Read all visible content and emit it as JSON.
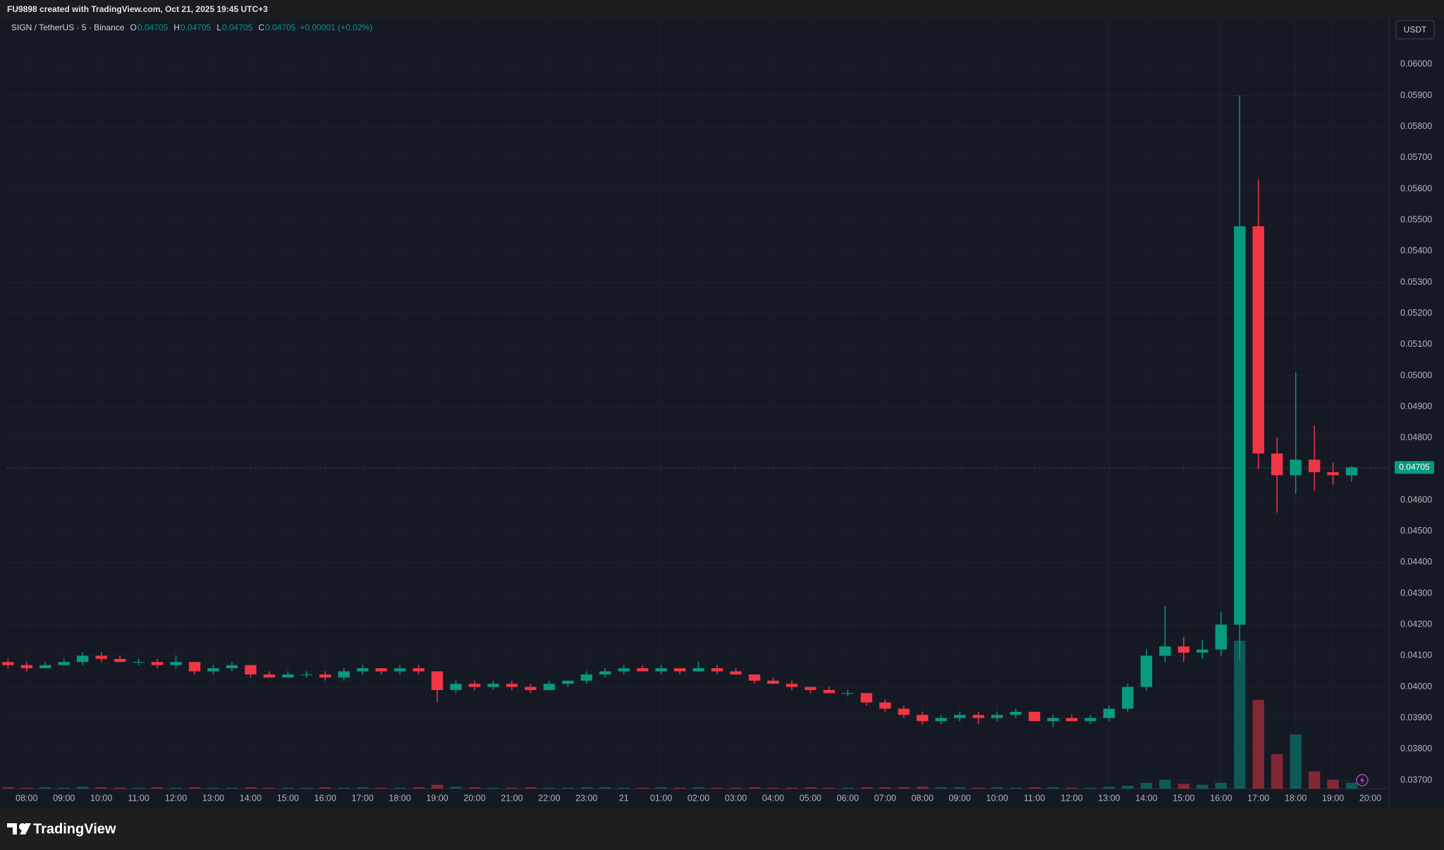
{
  "header": {
    "title": "FU9898 created with TradingView.com, Oct 21, 2025 19:45 UTC+3"
  },
  "footer": {
    "logo": "TradingView"
  },
  "chart_data": {
    "type": "candlestick",
    "symbol": "SIGN / TetherUS · 5 · Binance",
    "legend": [
      {
        "label": "O",
        "value": 0.04705
      },
      {
        "label": "H",
        "value": 0.04705
      },
      {
        "label": "L",
        "value": 0.04705
      },
      {
        "label": "C",
        "value": 0.04705
      }
    ],
    "change": "+0.00001 (+0.02%)",
    "currency": "USDT",
    "last_price": 0.04705,
    "colors": {
      "up": "#089981",
      "down": "#f23645"
    },
    "open": [
      0.0408,
      0.0407,
      0.0406,
      0.0407,
      0.0408,
      0.041,
      0.0409,
      0.0408,
      0.0408,
      0.0407,
      0.0408,
      0.0405,
      0.0406,
      0.0407,
      0.0404,
      0.0403,
      0.0404,
      0.0404,
      0.0403,
      0.0405,
      0.0406,
      0.0405,
      0.0406,
      0.0405,
      0.0399,
      0.0401,
      0.04,
      0.0401,
      0.04,
      0.0399,
      0.0401,
      0.0402,
      0.0404,
      0.0405,
      0.0406,
      0.0405,
      0.0406,
      0.0405,
      0.0406,
      0.0405,
      0.0404,
      0.0402,
      0.0401,
      0.04,
      0.0399,
      0.0398,
      0.0398,
      0.0395,
      0.0393,
      0.0391,
      0.0389,
      0.039,
      0.0391,
      0.039,
      0.0391,
      0.0392,
      0.0389,
      0.039,
      0.0389,
      0.039,
      0.0393,
      0.04,
      0.041,
      0.0413,
      0.0411,
      0.0412,
      0.042,
      0.0548,
      0.0475,
      0.0468,
      0.0473,
      0.0469,
      0.0468
    ],
    "high": [
      0.0409,
      0.0408,
      0.0408,
      0.0409,
      0.0411,
      0.0411,
      0.041,
      0.0409,
      0.0409,
      0.041,
      0.0408,
      0.0407,
      0.0408,
      0.0407,
      0.0405,
      0.0405,
      0.0405,
      0.0405,
      0.0406,
      0.0407,
      0.0406,
      0.0407,
      0.0407,
      0.0405,
      0.0402,
      0.0402,
      0.0402,
      0.0402,
      0.0401,
      0.0402,
      0.0402,
      0.0405,
      0.0406,
      0.0407,
      0.0407,
      0.0407,
      0.0406,
      0.0408,
      0.0407,
      0.0406,
      0.0404,
      0.0403,
      0.0402,
      0.04,
      0.04,
      0.0399,
      0.0398,
      0.0396,
      0.0394,
      0.0392,
      0.0391,
      0.0392,
      0.0392,
      0.0392,
      0.0393,
      0.0392,
      0.0391,
      0.0391,
      0.0391,
      0.0394,
      0.0401,
      0.0412,
      0.0426,
      0.0416,
      0.0415,
      0.0424,
      0.059,
      0.0563,
      0.048,
      0.0501,
      0.0484,
      0.0472,
      0.0471
    ],
    "low": [
      0.0406,
      0.0405,
      0.0406,
      0.0407,
      0.0407,
      0.0408,
      0.0408,
      0.0407,
      0.0406,
      0.0406,
      0.0404,
      0.0404,
      0.0405,
      0.0403,
      0.0403,
      0.0403,
      0.0403,
      0.0402,
      0.0402,
      0.0404,
      0.0404,
      0.0404,
      0.0404,
      0.0395,
      0.0398,
      0.0399,
      0.0399,
      0.0399,
      0.0398,
      0.0399,
      0.04,
      0.0401,
      0.0403,
      0.0404,
      0.0405,
      0.0404,
      0.0404,
      0.0405,
      0.0404,
      0.0404,
      0.0401,
      0.0401,
      0.0399,
      0.0398,
      0.0398,
      0.0397,
      0.0394,
      0.0392,
      0.039,
      0.0388,
      0.0388,
      0.0389,
      0.0388,
      0.0389,
      0.039,
      0.0389,
      0.0387,
      0.0389,
      0.0388,
      0.0389,
      0.0392,
      0.0399,
      0.0408,
      0.0408,
      0.0409,
      0.041,
      0.0409,
      0.047,
      0.0456,
      0.0462,
      0.0463,
      0.0465,
      0.0466
    ],
    "close": [
      0.0407,
      0.0406,
      0.0407,
      0.0408,
      0.041,
      0.0409,
      0.0408,
      0.0408,
      0.0407,
      0.0408,
      0.0405,
      0.0406,
      0.0407,
      0.0404,
      0.0403,
      0.0404,
      0.0404,
      0.0403,
      0.0405,
      0.0406,
      0.0405,
      0.0406,
      0.0405,
      0.0399,
      0.0401,
      0.04,
      0.0401,
      0.04,
      0.0399,
      0.0401,
      0.0402,
      0.0404,
      0.0405,
      0.0406,
      0.0405,
      0.0406,
      0.0405,
      0.0406,
      0.0405,
      0.0404,
      0.0402,
      0.0401,
      0.04,
      0.0399,
      0.0398,
      0.0398,
      0.0395,
      0.0393,
      0.0391,
      0.0389,
      0.039,
      0.0391,
      0.039,
      0.0391,
      0.0392,
      0.0389,
      0.039,
      0.0389,
      0.039,
      0.0393,
      0.04,
      0.041,
      0.0413,
      0.0411,
      0.0412,
      0.042,
      0.0548,
      0.0475,
      0.0468,
      0.0473,
      0.0469,
      0.0468,
      0.04705
    ],
    "volume": [
      3,
      2,
      3,
      2,
      4,
      3,
      2,
      2,
      3,
      2,
      3,
      2,
      2,
      3,
      2,
      2,
      2,
      3,
      2,
      3,
      2,
      2,
      3,
      8,
      4,
      3,
      2,
      2,
      3,
      2,
      2,
      3,
      3,
      2,
      2,
      3,
      2,
      3,
      2,
      2,
      3,
      2,
      2,
      3,
      2,
      2,
      3,
      3,
      3,
      4,
      3,
      3,
      2,
      3,
      2,
      3,
      3,
      2,
      2,
      4,
      6,
      12,
      18,
      10,
      8,
      12,
      300,
      180,
      70,
      110,
      35,
      18,
      12
    ],
    "xlim": [
      -0.05,
      74
    ],
    "xticks": [
      {
        "value": 1,
        "label": "08:00"
      },
      {
        "value": 3,
        "label": "09:00"
      },
      {
        "value": 5,
        "label": "10:00"
      },
      {
        "value": 7,
        "label": "11:00"
      },
      {
        "value": 9,
        "label": "12:00"
      },
      {
        "value": 11,
        "label": "13:00"
      },
      {
        "value": 13,
        "label": "14:00"
      },
      {
        "value": 15,
        "label": "15:00"
      },
      {
        "value": 17,
        "label": "16:00"
      },
      {
        "value": 19,
        "label": "17:00"
      },
      {
        "value": 21,
        "label": "18:00"
      },
      {
        "value": 23,
        "label": "19:00"
      },
      {
        "value": 25,
        "label": "20:00"
      },
      {
        "value": 27,
        "label": "21:00"
      },
      {
        "value": 29,
        "label": "22:00"
      },
      {
        "value": 31,
        "label": "23:00"
      },
      {
        "value": 33,
        "label": "21"
      },
      {
        "value": 35,
        "label": "01:00"
      },
      {
        "value": 37,
        "label": "02:00"
      },
      {
        "value": 39,
        "label": "03:00"
      },
      {
        "value": 41,
        "label": "04:00"
      },
      {
        "value": 43,
        "label": "05:00"
      },
      {
        "value": 45,
        "label": "06:00"
      },
      {
        "value": 47,
        "label": "07:00"
      },
      {
        "value": 49,
        "label": "08:00"
      },
      {
        "value": 51,
        "label": "09:00"
      },
      {
        "value": 53,
        "label": "10:00"
      },
      {
        "value": 55,
        "label": "11:00"
      },
      {
        "value": 57,
        "label": "12:00"
      },
      {
        "value": 59,
        "label": "13:00"
      },
      {
        "value": 61,
        "label": "14:00"
      },
      {
        "value": 63,
        "label": "15:00"
      },
      {
        "value": 65,
        "label": "16:00"
      },
      {
        "value": 67,
        "label": "17:00"
      },
      {
        "value": 69,
        "label": "18:00"
      },
      {
        "value": 71,
        "label": "19:00"
      },
      {
        "value": 73,
        "label": "20:00"
      }
    ],
    "ylim": [
      0.03673,
      0.06148
    ],
    "yticks": [
      {
        "value": 0.037,
        "label": "0.03700"
      },
      {
        "value": 0.038,
        "label": "0.03800"
      },
      {
        "value": 0.039,
        "label": "0.03900"
      },
      {
        "value": 0.04,
        "label": "0.04000"
      },
      {
        "value": 0.041,
        "label": "0.04100"
      },
      {
        "value": 0.042,
        "label": "0.04200"
      },
      {
        "value": 0.043,
        "label": "0.04300"
      },
      {
        "value": 0.044,
        "label": "0.04400"
      },
      {
        "value": 0.045,
        "label": "0.04500"
      },
      {
        "value": 0.046,
        "label": "0.04600"
      },
      {
        "value": 0.047,
        "label": "0.04700"
      },
      {
        "value": 0.048,
        "label": "0.04800"
      },
      {
        "value": 0.049,
        "label": "0.04900"
      },
      {
        "value": 0.05,
        "label": "0.05000"
      },
      {
        "value": 0.051,
        "label": "0.05100"
      },
      {
        "value": 0.052,
        "label": "0.05200"
      },
      {
        "value": 0.053,
        "label": "0.05300"
      },
      {
        "value": 0.054,
        "label": "0.05400"
      },
      {
        "value": 0.055,
        "label": "0.05500"
      },
      {
        "value": 0.056,
        "label": "0.05600"
      },
      {
        "value": 0.057,
        "label": "0.05700"
      },
      {
        "value": 0.058,
        "label": "0.05800"
      },
      {
        "value": 0.059,
        "label": "0.05900"
      },
      {
        "value": 0.06,
        "label": "0.06000"
      }
    ],
    "grid": true
  }
}
